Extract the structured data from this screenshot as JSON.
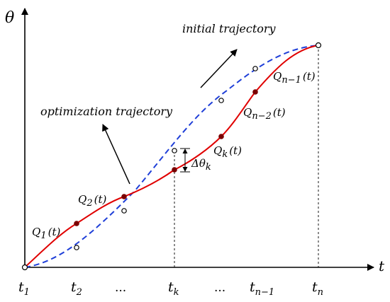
{
  "axes": {
    "y_label": "θ",
    "x_label": "t"
  },
  "ticks": [
    {
      "base": "t",
      "sub": "1"
    },
    {
      "base": "t",
      "sub": "2"
    },
    {
      "base": "...",
      "sub": ""
    },
    {
      "base": "t",
      "sub": "k"
    },
    {
      "base": "...",
      "sub": ""
    },
    {
      "base": "t",
      "sub": "n−1"
    },
    {
      "base": "t",
      "sub": "n"
    }
  ],
  "annotations": {
    "initial": "initial trajectory",
    "optimization": "optimization trajectory",
    "delta": {
      "base": "Δθ",
      "sub": "k"
    }
  },
  "points": [
    {
      "base": "Q",
      "sub": "1",
      "arg": "(t)"
    },
    {
      "base": "Q",
      "sub": "2",
      "arg": "(t)"
    },
    {
      "base": "Q",
      "sub": "k",
      "arg": "(t)"
    },
    {
      "base": "Q",
      "sub": "n−2",
      "arg": "(t)"
    },
    {
      "base": "Q",
      "sub": "n−1",
      "arg": "(t)"
    }
  ],
  "colors": {
    "initial_curve": "#1f3fd8",
    "optimization_curve": "#e00000",
    "point_fill": "#7a0000"
  }
}
